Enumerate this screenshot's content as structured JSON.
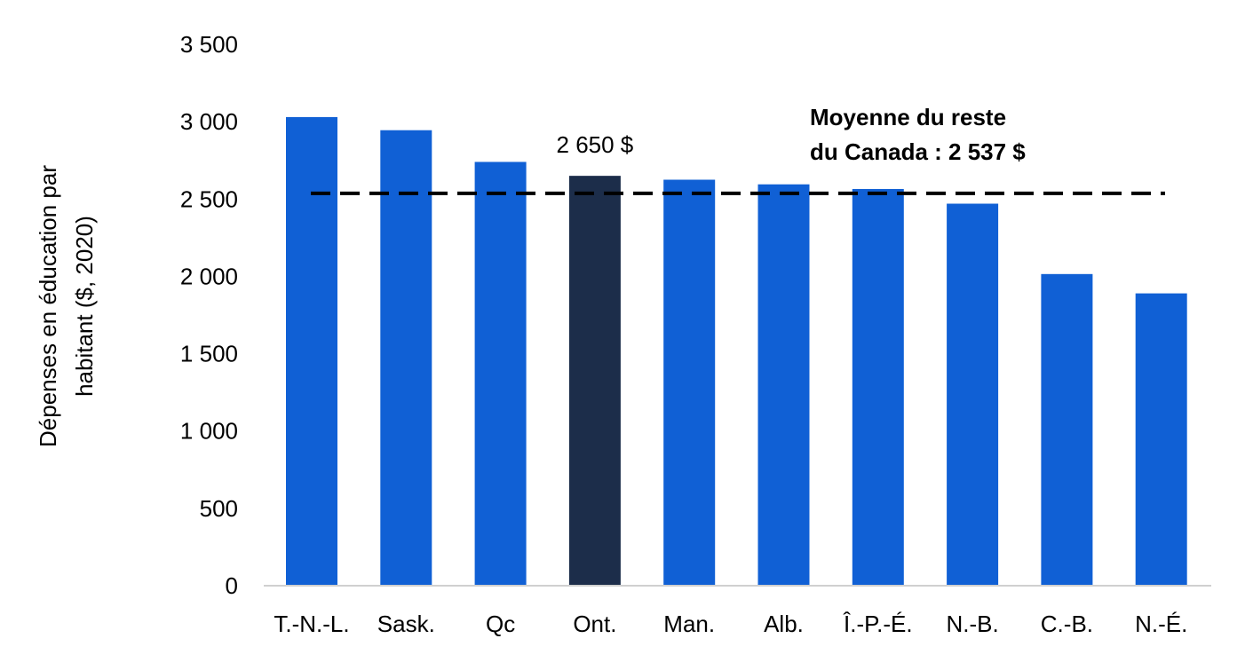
{
  "chart_data": {
    "type": "bar",
    "title": "",
    "xlabel": "",
    "ylabel": [
      "Dépenses en éducation par",
      "habitant ($, 2020)"
    ],
    "ylim": [
      0,
      3500
    ],
    "yticks": [
      0,
      500,
      1000,
      1500,
      2000,
      2500,
      3000,
      3500
    ],
    "ytick_labels": [
      "0",
      "500",
      "1 000",
      "1 500",
      "2 000",
      "2 500",
      "3 000",
      "3 500"
    ],
    "grid": false,
    "categories": [
      "T.-N.-L.",
      "Sask.",
      "Qc",
      "Ont.",
      "Man.",
      "Alb.",
      "Î.-P.-É.",
      "N.-B.",
      "C.-B.",
      "N.-É."
    ],
    "values": [
      3030,
      2945,
      2740,
      2650,
      2625,
      2595,
      2565,
      2470,
      2015,
      1890
    ],
    "highlight_index": 3,
    "data_labels": [
      {
        "index": 3,
        "text": "2 650 $"
      }
    ],
    "reference_line": {
      "value": 2537,
      "style": "dashed",
      "label": [
        "Moyenne du reste",
        "du Canada : 2 537 $"
      ]
    },
    "colors": {
      "bar": "#1060d5",
      "highlight": "#1c2d4a",
      "reference_line": "#000000",
      "axis": "#d0d0d0"
    }
  }
}
